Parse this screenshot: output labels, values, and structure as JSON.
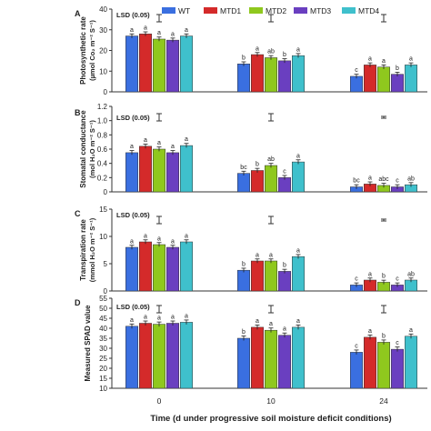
{
  "figure": {
    "xlabel": "Time (d under progressive soil moisture deficit conditions)",
    "x_ticks": [
      "0",
      "10",
      "24"
    ],
    "legend": [
      "WT",
      "MTD1",
      "MTD2",
      "MTD3",
      "MTD4"
    ],
    "colors": [
      "#3a6fe0",
      "#d42a2a",
      "#8fc81e",
      "#6a3fc0",
      "#3fc0cc"
    ],
    "lsd_label": "LSD (0.05)"
  },
  "chart_data": [
    {
      "type": "bar",
      "panel": "A",
      "ylabel_line1": "Photosynthetic rate",
      "ylabel_line2": "(µmol Co₂ m⁻² S⁻¹)",
      "categories": [
        "0",
        "10",
        "24"
      ],
      "ylim": [
        0,
        40
      ],
      "yticks": [
        "0",
        "10",
        "20",
        "30",
        "40"
      ],
      "series": [
        {
          "name": "WT",
          "values": [
            27,
            13.5,
            7.5
          ],
          "letters": [
            "a",
            "b",
            "c"
          ]
        },
        {
          "name": "MTD1",
          "values": [
            28,
            18,
            13
          ],
          "letters": [
            "a",
            "a",
            "a"
          ]
        },
        {
          "name": "MTD2",
          "values": [
            25.5,
            16.5,
            12
          ],
          "letters": [
            "a",
            "ab",
            "a"
          ]
        },
        {
          "name": "MTD3",
          "values": [
            25,
            15,
            8.5
          ],
          "letters": [
            "a",
            "b",
            "b"
          ]
        },
        {
          "name": "MTD4",
          "values": [
            27,
            17.5,
            13
          ],
          "letters": [
            "a",
            "a",
            "a"
          ]
        }
      ],
      "lsd": [
        0,
        0,
        0
      ]
    },
    {
      "type": "bar",
      "panel": "B",
      "ylabel_line1": "Stomatal conductance",
      "ylabel_line2": "(mol H₂O m⁻² S⁻¹)",
      "categories": [
        "0",
        "10",
        "24"
      ],
      "ylim": [
        0,
        1.2
      ],
      "yticks": [
        "0",
        "0.2",
        "0.4",
        "0.6",
        "0.8",
        "1.0",
        "1.2"
      ],
      "series": [
        {
          "name": "WT",
          "values": [
            0.55,
            0.26,
            0.07
          ],
          "letters": [
            "a",
            "bc",
            "bc"
          ]
        },
        {
          "name": "MTD1",
          "values": [
            0.64,
            0.3,
            0.11
          ],
          "letters": [
            "a",
            "b",
            "a"
          ]
        },
        {
          "name": "MTD2",
          "values": [
            0.6,
            0.37,
            0.09
          ],
          "letters": [
            "a",
            "ab",
            "abc"
          ]
        },
        {
          "name": "MTD3",
          "values": [
            0.55,
            0.2,
            0.07
          ],
          "letters": [
            "a",
            "c",
            "c"
          ]
        },
        {
          "name": "MTD4",
          "values": [
            0.65,
            0.42,
            0.1
          ],
          "letters": [
            "a",
            "a",
            "ab"
          ]
        }
      ],
      "lsd": [
        0,
        0,
        0
      ]
    },
    {
      "type": "bar",
      "panel": "C",
      "ylabel_line1": "Transpiration rate",
      "ylabel_line2": "(mmol H₂O m⁻² S⁻¹)",
      "categories": [
        "0",
        "10",
        "24"
      ],
      "ylim": [
        0,
        15
      ],
      "yticks": [
        "0",
        "5",
        "10",
        "15"
      ],
      "series": [
        {
          "name": "WT",
          "values": [
            8,
            3.8,
            1.1
          ],
          "letters": [
            "a",
            "b",
            "c"
          ]
        },
        {
          "name": "MTD1",
          "values": [
            9,
            5.5,
            2
          ],
          "letters": [
            "a",
            "a",
            "a"
          ]
        },
        {
          "name": "MTD2",
          "values": [
            8.5,
            5.5,
            1.6
          ],
          "letters": [
            "a",
            "a",
            "b"
          ]
        },
        {
          "name": "MTD3",
          "values": [
            8,
            3.6,
            1.1
          ],
          "letters": [
            "a",
            "b",
            "c"
          ]
        },
        {
          "name": "MTD4",
          "values": [
            9,
            6.3,
            2
          ],
          "letters": [
            "a",
            "a",
            "ab"
          ]
        }
      ],
      "lsd": [
        0,
        0,
        0
      ]
    },
    {
      "type": "bar",
      "panel": "D",
      "ylabel_line1": "Measured SPAD value",
      "ylabel_line2": "",
      "categories": [
        "0",
        "10",
        "24"
      ],
      "ylim": [
        10,
        55
      ],
      "yticks": [
        "10",
        "15",
        "20",
        "25",
        "30",
        "35",
        "40",
        "45",
        "50",
        "55"
      ],
      "series": [
        {
          "name": "WT",
          "values": [
            41,
            35,
            28
          ],
          "letters": [
            "a",
            "b",
            "c"
          ]
        },
        {
          "name": "MTD1",
          "values": [
            42.5,
            40.5,
            35.5
          ],
          "letters": [
            "a",
            "a",
            "a"
          ]
        },
        {
          "name": "MTD2",
          "values": [
            42,
            39,
            33
          ],
          "letters": [
            "a",
            "a",
            "b"
          ]
        },
        {
          "name": "MTD3",
          "values": [
            42.5,
            36.5,
            29.5
          ],
          "letters": [
            "a",
            "a",
            "c"
          ]
        },
        {
          "name": "MTD4",
          "values": [
            43,
            40.5,
            36
          ],
          "letters": [
            "a",
            "a",
            "a"
          ]
        }
      ],
      "lsd": [
        0,
        0,
        0
      ]
    }
  ]
}
